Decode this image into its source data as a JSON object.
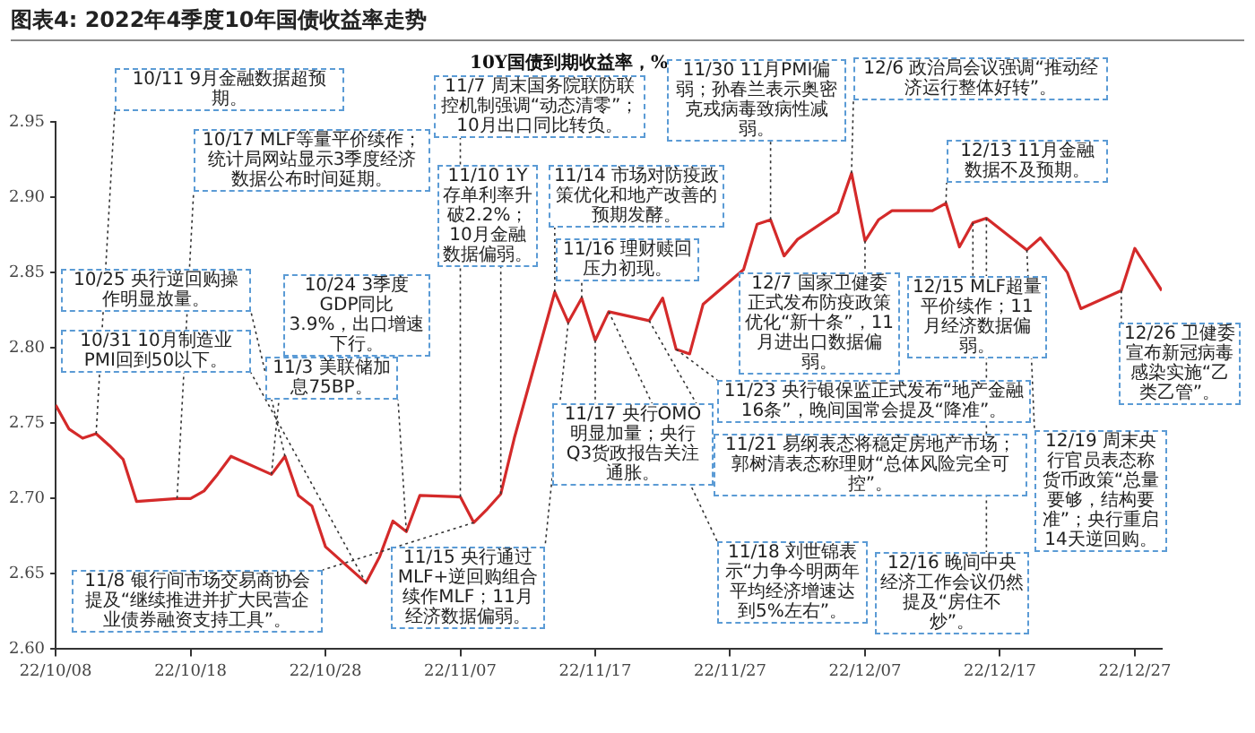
{
  "chart_data": {
    "type": "line",
    "title": "图表4: 2022年4季度10年国债收益率走势",
    "ylabel": "10Y国债到期收益率，%",
    "color": "#d42a2a",
    "marker": "none",
    "line_style": "solid",
    "grid": false,
    "legend": false,
    "x": [
      "2022-10-08",
      "2022-10-09",
      "2022-10-10",
      "2022-10-11",
      "2022-10-12",
      "2022-10-13",
      "2022-10-14",
      "2022-10-17",
      "2022-10-18",
      "2022-10-19",
      "2022-10-20",
      "2022-10-21",
      "2022-10-24",
      "2022-10-25",
      "2022-10-26",
      "2022-10-27",
      "2022-10-28",
      "2022-10-31",
      "2022-11-01",
      "2022-11-02",
      "2022-11-03",
      "2022-11-04",
      "2022-11-07",
      "2022-11-08",
      "2022-11-09",
      "2022-11-10",
      "2022-11-11",
      "2022-11-14",
      "2022-11-15",
      "2022-11-16",
      "2022-11-17",
      "2022-11-18",
      "2022-11-21",
      "2022-11-22",
      "2022-11-23",
      "2022-11-24",
      "2022-11-25",
      "2022-11-28",
      "2022-11-29",
      "2022-11-30",
      "2022-12-01",
      "2022-12-02",
      "2022-12-05",
      "2022-12-06",
      "2022-12-07",
      "2022-12-08",
      "2022-12-09",
      "2022-12-12",
      "2022-12-13",
      "2022-12-14",
      "2022-12-15",
      "2022-12-16",
      "2022-12-19",
      "2022-12-20",
      "2022-12-21",
      "2022-12-22",
      "2022-12-23",
      "2022-12-26",
      "2022-12-27",
      "2022-12-28",
      "2022-12-29"
    ],
    "values": [
      2.762,
      2.746,
      2.74,
      2.743,
      2.735,
      2.726,
      2.698,
      2.7,
      2.7,
      2.705,
      2.716,
      2.728,
      2.716,
      2.728,
      2.702,
      2.695,
      2.668,
      2.644,
      2.661,
      2.685,
      2.678,
      2.702,
      2.701,
      2.684,
      2.693,
      2.703,
      2.74,
      2.837,
      2.817,
      2.833,
      2.805,
      2.824,
      2.818,
      2.833,
      2.799,
      2.796,
      2.829,
      2.852,
      2.882,
      2.885,
      2.861,
      2.872,
      2.89,
      2.916,
      2.871,
      2.885,
      2.891,
      2.891,
      2.896,
      2.867,
      2.883,
      2.886,
      2.865,
      2.873,
      2.862,
      2.85,
      2.826,
      2.838,
      2.866,
      2.852,
      2.838
    ],
    "xlim": [
      "2022-10-08",
      "2022-12-29"
    ],
    "xticks": [
      {
        "value": "2022-10-08",
        "label": "22/10/08"
      },
      {
        "value": "2022-10-18",
        "label": "22/10/18"
      },
      {
        "value": "2022-10-28",
        "label": "22/10/28"
      },
      {
        "value": "2022-11-07",
        "label": "22/11/07"
      },
      {
        "value": "2022-11-17",
        "label": "22/11/17"
      },
      {
        "value": "2022-11-27",
        "label": "22/11/27"
      },
      {
        "value": "2022-12-07",
        "label": "22/12/07"
      },
      {
        "value": "2022-12-17",
        "label": "22/12/17"
      },
      {
        "value": "2022-12-27",
        "label": "22/12/27"
      }
    ],
    "ylim": [
      2.6,
      2.95
    ],
    "yticks": [
      {
        "value": 2.6,
        "label": "2.60"
      },
      {
        "value": 2.65,
        "label": "2.65"
      },
      {
        "value": 2.7,
        "label": "2.70"
      },
      {
        "value": 2.75,
        "label": "2.75"
      },
      {
        "value": 2.8,
        "label": "2.80"
      },
      {
        "value": 2.85,
        "label": "2.85"
      },
      {
        "value": 2.9,
        "label": "2.90"
      },
      {
        "value": 2.95,
        "label": "2.95"
      }
    ],
    "annotations": [
      {
        "text": "10/11 9月金融数据超预期。",
        "x": "2022-10-11",
        "y": 2.743
      },
      {
        "text": "10/17 MLF等量平价续作；统计局网站显示3季度经济数据公布时间延期。",
        "x": "2022-10-17",
        "y": 2.7
      },
      {
        "text": "10/24 3季度GDP同比3.9%，出口增速下行。",
        "x": "2022-10-24",
        "y": 2.716
      },
      {
        "text": "11/3 美联储加息75BP。",
        "x": "2022-11-03",
        "y": 2.678
      },
      {
        "text": "10/25 央行逆回购操作明显放量。",
        "x": "2022-10-25",
        "y": 2.728
      },
      {
        "text": "10/31 10月制造业PMI回到50以下。",
        "x": "2022-10-31",
        "y": 2.644
      },
      {
        "text": "11/8 银行间市场交易商协会提及“继续推进并扩大民营企业债券融资支持工具”。",
        "x": "2022-11-08",
        "y": 2.684
      },
      {
        "text": "11/7 周末国务院联防联控机制强调“动态清零”；10月出口同比转负。",
        "x": "2022-11-07",
        "y": 2.701
      },
      {
        "text": "11/10 1Y存单利率升破2.2%；10月金融数据偏弱。",
        "x": "2022-11-10",
        "y": 2.703
      },
      {
        "text": "11/30 11月PMI偏弱；孙春兰表示奥密克戎病毒致病性减弱。",
        "x": "2022-11-30",
        "y": 2.885
      },
      {
        "text": "11/14 市场对防疫政策优化和地产改善的预期发酵。",
        "x": "2022-11-14",
        "y": 2.837
      },
      {
        "text": "11/16 理财赎回压力初现。",
        "x": "2022-11-16",
        "y": 2.833
      },
      {
        "text": "12/7 国家卫健委正式发布防疫政策优化“新十条”，11月进出口数据偏弱。",
        "x": "2022-12-07",
        "y": 2.871
      },
      {
        "text": "11/23 央行银保监正式发布“地产金融16条”，晚间国常会提及“降准”。",
        "x": "2022-11-23",
        "y": 2.799
      },
      {
        "text": "11/21 易纲表态将稳定房地产市场；郭树清表态称理财“总体风险完全可控”。",
        "x": "2022-11-21",
        "y": 2.818
      },
      {
        "text": "11/17 央行OMO明显加量；央行Q3货政报告关注通胀。",
        "x": "2022-11-17",
        "y": 2.805
      },
      {
        "text": "11/15 央行通过MLF+逆回购组合续作MLF；11月经济数据偏弱。",
        "x": "2022-11-15",
        "y": 2.817
      },
      {
        "text": "11/18 刘世锦表示“力争今明两年平均经济增速达到5%左右”。",
        "x": "2022-11-18",
        "y": 2.824
      },
      {
        "text": "12/6 政治局会议强调“推动经济运行整体好转”。",
        "x": "2022-12-06",
        "y": 2.916
      },
      {
        "text": "12/13 11月金融数据不及预期。",
        "x": "2022-12-13",
        "y": 2.896
      },
      {
        "text": "12/15 MLF超量平价续作；11月经济数据偏弱。",
        "x": "2022-12-15",
        "y": 2.883
      },
      {
        "text": "12/26 卫健委宣布新冠病毒感染实施“乙类乙管”。",
        "x": "2022-12-26",
        "y": 2.838
      },
      {
        "text": "12/19 周末央行官员表态称货币政策“总量要够，结构要准”；央行重启14天逆回购。",
        "x": "2022-12-19",
        "y": 2.865
      },
      {
        "text": "12/16 晚间中央经济工作会议仍然提及“房住不炒”。",
        "x": "2022-12-16",
        "y": 2.886
      }
    ]
  }
}
